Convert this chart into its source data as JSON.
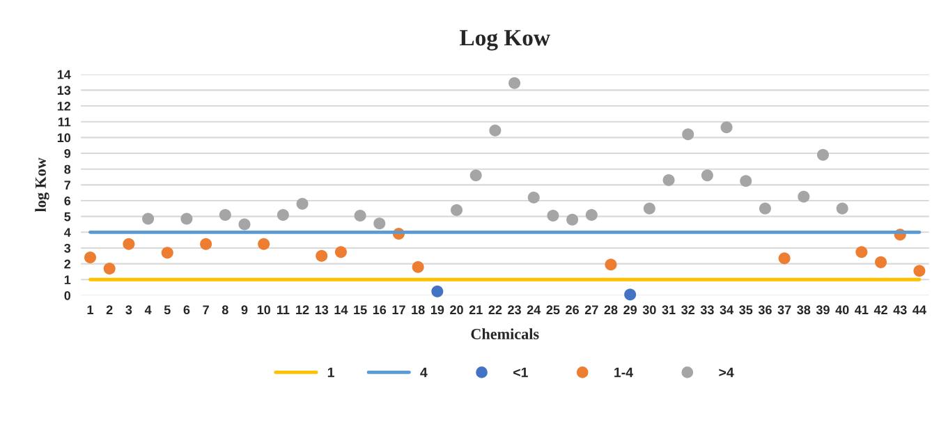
{
  "chart_data": {
    "type": "scatter",
    "title": "Log Kow",
    "xlabel": "Chemicals",
    "ylabel": "log Kow",
    "categories": [
      "1",
      "2",
      "3",
      "4",
      "5",
      "6",
      "7",
      "8",
      "9",
      "10",
      "11",
      "12",
      "13",
      "14",
      "15",
      "16",
      "17",
      "18",
      "19",
      "20",
      "21",
      "22",
      "23",
      "24",
      "25",
      "26",
      "27",
      "28",
      "29",
      "30",
      "31",
      "32",
      "33",
      "34",
      "35",
      "36",
      "37",
      "38",
      "39",
      "40",
      "41",
      "42",
      "43",
      "44"
    ],
    "ylim": [
      0,
      14
    ],
    "yticks": [
      0,
      1,
      2,
      3,
      4,
      5,
      6,
      7,
      8,
      9,
      10,
      11,
      12,
      13,
      14
    ],
    "grid": "y",
    "legend": "bottom",
    "series": [
      {
        "name": "1",
        "type": "line",
        "marker": "none",
        "line_style": "solid",
        "color": "#ffc000",
        "values": [
          1,
          1,
          1,
          1,
          1,
          1,
          1,
          1,
          1,
          1,
          1,
          1,
          1,
          1,
          1,
          1,
          1,
          1,
          1,
          1,
          1,
          1,
          1,
          1,
          1,
          1,
          1,
          1,
          1,
          1,
          1,
          1,
          1,
          1,
          1,
          1,
          1,
          1,
          1,
          1,
          1,
          1,
          1,
          1
        ]
      },
      {
        "name": "4",
        "type": "line",
        "marker": "none",
        "line_style": "solid",
        "color": "#5b9bd5",
        "values": [
          4,
          4,
          4,
          4,
          4,
          4,
          4,
          4,
          4,
          4,
          4,
          4,
          4,
          4,
          4,
          4,
          4,
          4,
          4,
          4,
          4,
          4,
          4,
          4,
          4,
          4,
          4,
          4,
          4,
          4,
          4,
          4,
          4,
          4,
          4,
          4,
          4,
          4,
          4,
          4,
          4,
          4,
          4,
          4
        ]
      },
      {
        "name": "<1",
        "marker": "circle",
        "color": "#4472c4",
        "values": [
          null,
          null,
          null,
          null,
          null,
          null,
          null,
          null,
          null,
          null,
          null,
          null,
          null,
          null,
          null,
          null,
          null,
          null,
          0.25,
          null,
          null,
          null,
          null,
          null,
          null,
          null,
          null,
          null,
          0.05,
          null,
          null,
          null,
          null,
          null,
          null,
          null,
          null,
          null,
          null,
          null,
          null,
          null,
          null,
          null
        ]
      },
      {
        "name": "1-4",
        "marker": "circle",
        "color": "#ed7d31",
        "values": [
          2.4,
          1.7,
          3.25,
          null,
          2.7,
          null,
          3.25,
          null,
          null,
          3.25,
          null,
          null,
          2.5,
          2.75,
          null,
          null,
          3.9,
          1.8,
          null,
          null,
          null,
          null,
          null,
          null,
          null,
          null,
          null,
          1.95,
          null,
          null,
          null,
          null,
          null,
          null,
          null,
          null,
          2.35,
          null,
          null,
          null,
          2.75,
          2.1,
          3.85,
          1.55
        ]
      },
      {
        "name": ">4",
        "marker": "circle",
        "color": "#a5a5a5",
        "values": [
          null,
          null,
          null,
          4.85,
          null,
          4.85,
          null,
          5.1,
          4.5,
          null,
          5.1,
          5.8,
          null,
          null,
          5.05,
          4.55,
          null,
          null,
          null,
          5.4,
          7.6,
          10.45,
          13.45,
          6.2,
          5.05,
          4.8,
          5.1,
          null,
          null,
          5.5,
          7.3,
          10.2,
          7.6,
          10.65,
          7.25,
          5.5,
          null,
          6.25,
          8.9,
          5.5,
          null,
          null,
          null,
          null
        ]
      }
    ]
  }
}
